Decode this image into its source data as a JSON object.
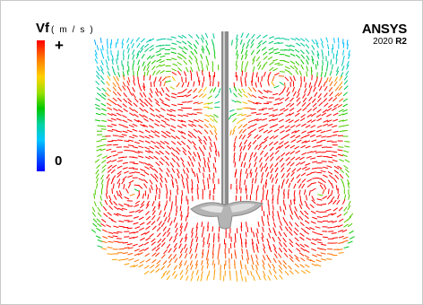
{
  "legend": {
    "symbol": "V",
    "subscript": "f",
    "unit": "( m / s )",
    "max_label": "+",
    "min_label": "0"
  },
  "brand": {
    "name": "ANSYS",
    "version": "2020",
    "release": "R2"
  },
  "colors": {
    "scale": [
      "#0000ff",
      "#00c8ff",
      "#00c800",
      "#ffd200",
      "#ff7a00",
      "#ff0000"
    ],
    "shaft": "#8c8c8c",
    "impeller": "#b4b4b4"
  },
  "icons": {
    "shaft": "impeller-shaft-icon",
    "impeller": "impeller-blades-icon"
  }
}
